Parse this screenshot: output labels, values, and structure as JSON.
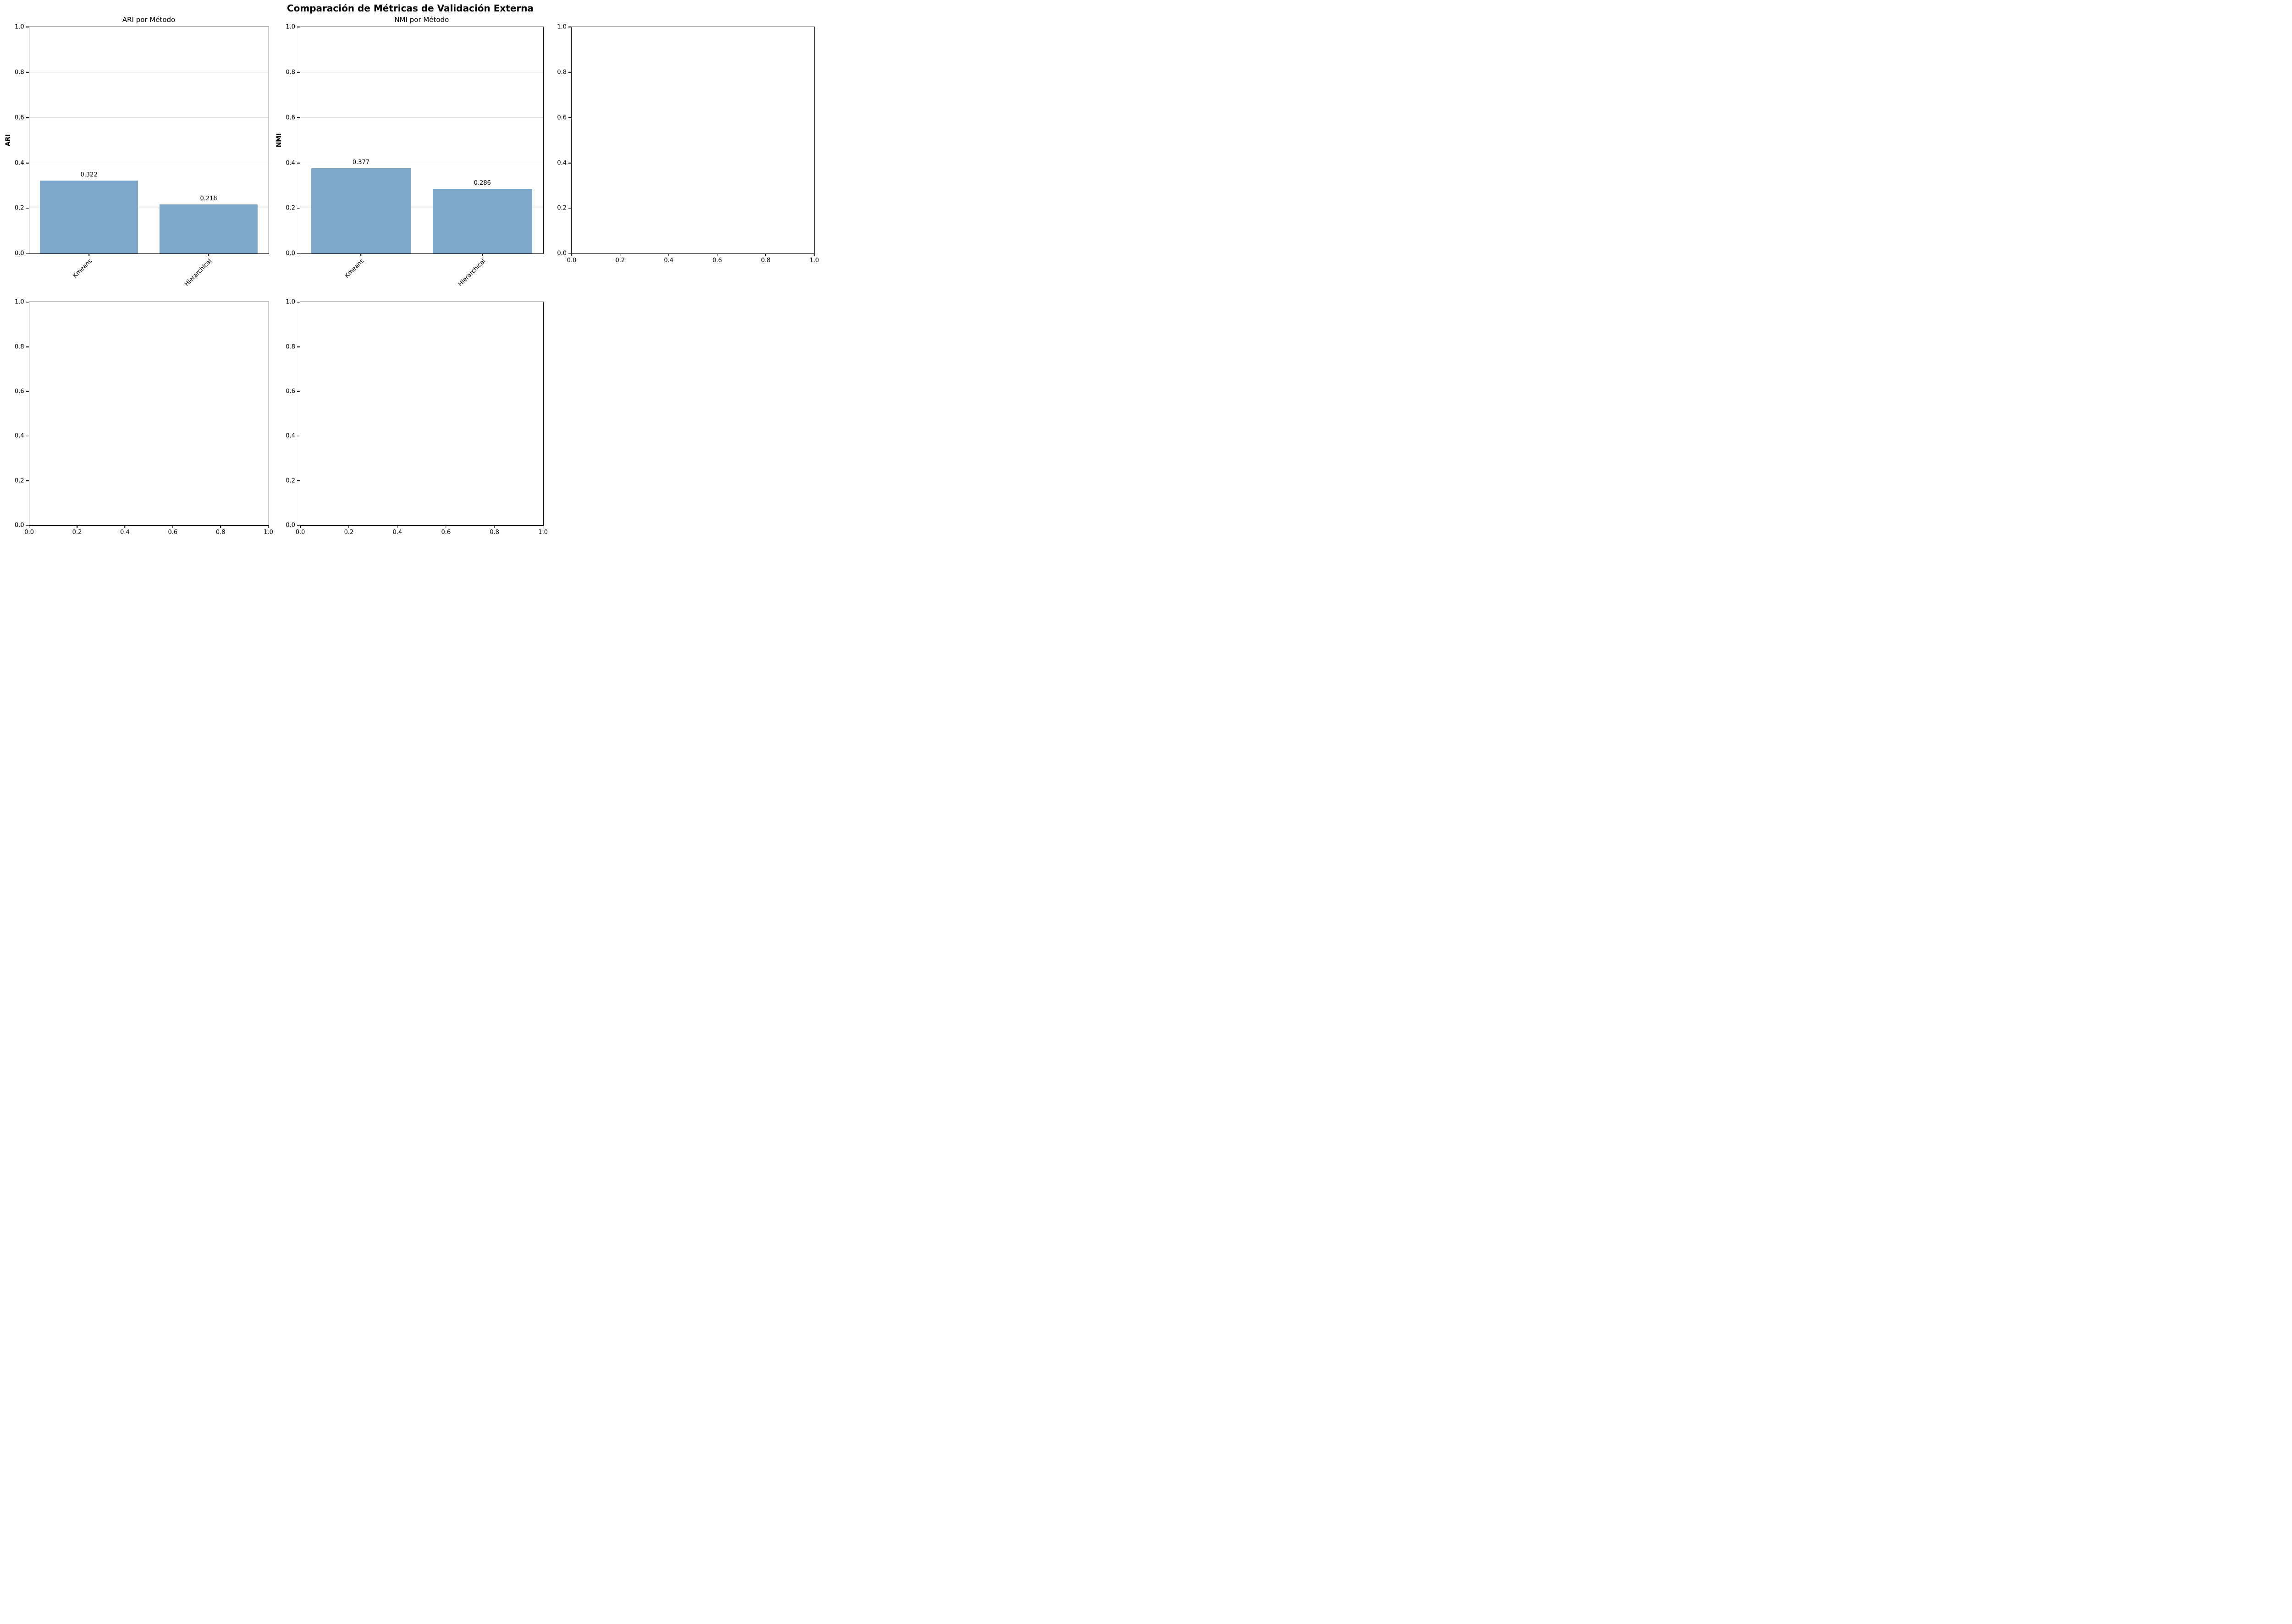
{
  "figure": {
    "suptitle": "Comparación de Métricas de Validación Externa",
    "background": "#ffffff",
    "text_color": "#000000",
    "grid_color": "#dcdcdc"
  },
  "chart_data": [
    {
      "type": "bar",
      "title": "ARI por Método",
      "ylabel": "ARI",
      "categories": [
        "Kmeans",
        "Hierarchical"
      ],
      "values": [
        0.322,
        0.218
      ],
      "bar_labels": [
        "0.322",
        "0.218"
      ],
      "ylim": [
        0.0,
        1.0
      ],
      "yticks": [
        "0.0",
        "0.2",
        "0.4",
        "0.6",
        "0.8",
        "1.0"
      ],
      "grid": "y",
      "legend": "none",
      "bar_color": "#7da7cb",
      "xtick_rotation": 45
    },
    {
      "type": "bar",
      "title": "NMI por Método",
      "ylabel": "NMI",
      "categories": [
        "Kmeans",
        "Hierarchical"
      ],
      "values": [
        0.377,
        0.286
      ],
      "bar_labels": [
        "0.377",
        "0.286"
      ],
      "ylim": [
        0.0,
        1.0
      ],
      "yticks": [
        "0.0",
        "0.2",
        "0.4",
        "0.6",
        "0.8",
        "1.0"
      ],
      "grid": "y",
      "legend": "none",
      "bar_color": "#7da7cb",
      "xtick_rotation": 45
    },
    {
      "type": "empty",
      "title": "",
      "xlim": [
        0.0,
        1.0
      ],
      "ylim": [
        0.0,
        1.0
      ],
      "xticks": [
        "0.0",
        "0.2",
        "0.4",
        "0.6",
        "0.8",
        "1.0"
      ],
      "yticks": [
        "0.0",
        "0.2",
        "0.4",
        "0.6",
        "0.8",
        "1.0"
      ],
      "grid": "none"
    },
    {
      "type": "empty",
      "title": "",
      "xlim": [
        0.0,
        1.0
      ],
      "ylim": [
        0.0,
        1.0
      ],
      "xticks": [
        "0.0",
        "0.2",
        "0.4",
        "0.6",
        "0.8",
        "1.0"
      ],
      "yticks": [
        "0.0",
        "0.2",
        "0.4",
        "0.6",
        "0.8",
        "1.0"
      ],
      "grid": "none"
    },
    {
      "type": "empty",
      "title": "",
      "xlim": [
        0.0,
        1.0
      ],
      "ylim": [
        0.0,
        1.0
      ],
      "xticks": [
        "0.0",
        "0.2",
        "0.4",
        "0.6",
        "0.8",
        "1.0"
      ],
      "yticks": [
        "0.0",
        "0.2",
        "0.4",
        "0.6",
        "0.8",
        "1.0"
      ],
      "grid": "none"
    }
  ]
}
